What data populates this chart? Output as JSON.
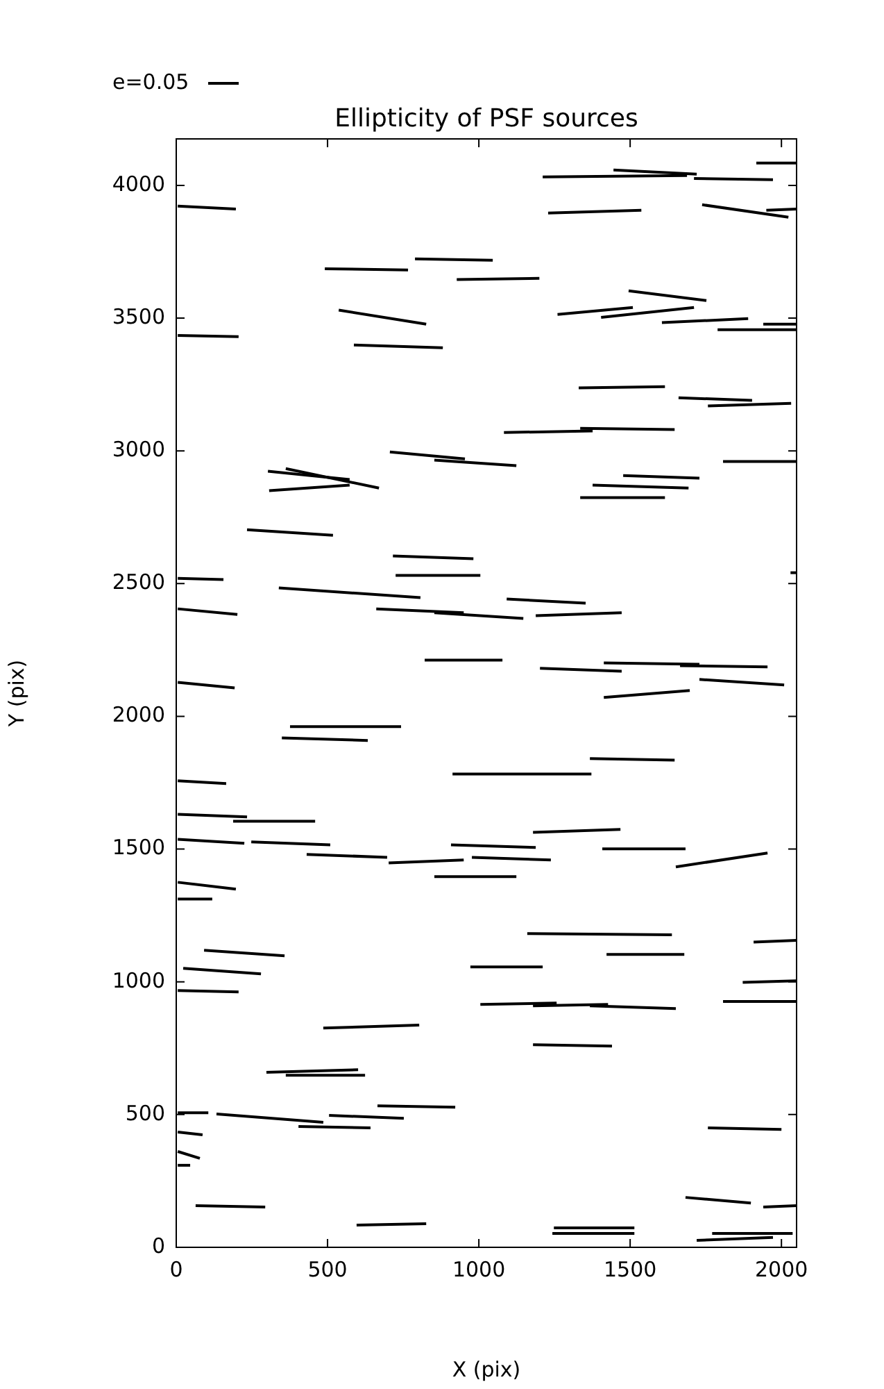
{
  "chart_data": {
    "type": "line",
    "title": "Ellipticity of PSF sources",
    "xlabel": "X (pix)",
    "ylabel": "Y (pix)",
    "xlim": [
      0,
      2050
    ],
    "ylim": [
      0,
      4175
    ],
    "xticks": [
      0,
      500,
      1000,
      1500,
      2000
    ],
    "yticks": [
      0,
      500,
      1000,
      1500,
      2000,
      2500,
      3000,
      3500,
      4000
    ],
    "grid": false,
    "marker": "none",
    "line_style": "solid",
    "annotations": [
      "e=0.05"
    ],
    "series": [
      {
        "color": "#000000",
        "x": [
          1917,
          2050
        ],
        "values": [
          4084,
          4084
        ]
      },
      {
        "color": "#000000",
        "x": [
          1445,
          1720
        ],
        "values": [
          4058,
          4042
        ]
      },
      {
        "color": "#000000",
        "x": [
          1211,
          1688
        ],
        "values": [
          4032,
          4037
        ]
      },
      {
        "color": "#000000",
        "x": [
          1711,
          1972
        ],
        "values": [
          4026,
          4021
        ]
      },
      {
        "color": "#000000",
        "x": [
          1229,
          1537
        ],
        "values": [
          3896,
          3906
        ]
      },
      {
        "color": "#000000",
        "x": [
          1738,
          2023
        ],
        "values": [
          3927,
          3880
        ]
      },
      {
        "color": "#000000",
        "x": [
          1950,
          2050
        ],
        "values": [
          3906,
          3911
        ]
      },
      {
        "color": "#000000",
        "x": [
          5,
          197
        ],
        "values": [
          3922,
          3911
        ]
      },
      {
        "color": "#000000",
        "x": [
          491,
          766
        ],
        "values": [
          3686,
          3681
        ]
      },
      {
        "color": "#000000",
        "x": [
          789,
          1046
        ],
        "values": [
          3723,
          3718
        ]
      },
      {
        "color": "#000000",
        "x": [
          927,
          1200
        ],
        "values": [
          3645,
          3650
        ]
      },
      {
        "color": "#000000",
        "x": [
          537,
          826
        ],
        "values": [
          3530,
          3477
        ]
      },
      {
        "color": "#000000",
        "x": [
          587,
          881
        ],
        "values": [
          3399,
          3388
        ]
      },
      {
        "color": "#000000",
        "x": [
          5,
          206
        ],
        "values": [
          3435,
          3430
        ]
      },
      {
        "color": "#000000",
        "x": [
          1495,
          1752
        ],
        "values": [
          3603,
          3566
        ]
      },
      {
        "color": "#000000",
        "x": [
          1260,
          1509
        ],
        "values": [
          3514,
          3540
        ]
      },
      {
        "color": "#000000",
        "x": [
          1404,
          1711
        ],
        "values": [
          3503,
          3540
        ]
      },
      {
        "color": "#000000",
        "x": [
          1605,
          1890
        ],
        "values": [
          3483,
          3498
        ]
      },
      {
        "color": "#000000",
        "x": [
          1789,
          2050
        ],
        "values": [
          3456,
          3456
        ]
      },
      {
        "color": "#000000",
        "x": [
          1940,
          2050
        ],
        "values": [
          3477,
          3477
        ]
      },
      {
        "color": "#000000",
        "x": [
          1330,
          1615
        ],
        "values": [
          3237,
          3242
        ]
      },
      {
        "color": "#000000",
        "x": [
          1660,
          1903
        ],
        "values": [
          3200,
          3190
        ]
      },
      {
        "color": "#000000",
        "x": [
          1757,
          2032
        ],
        "values": [
          3169,
          3179
        ]
      },
      {
        "color": "#000000",
        "x": [
          1083,
          1376
        ],
        "values": [
          3069,
          3075
        ]
      },
      {
        "color": "#000000",
        "x": [
          1335,
          1647
        ],
        "values": [
          3085,
          3080
        ]
      },
      {
        "color": "#000000",
        "x": [
          1807,
          2050
        ],
        "values": [
          2960,
          2960
        ]
      },
      {
        "color": "#000000",
        "x": [
          706,
          954
        ],
        "values": [
          2996,
          2970
        ]
      },
      {
        "color": "#000000",
        "x": [
          853,
          1124
        ],
        "values": [
          2965,
          2944
        ]
      },
      {
        "color": "#000000",
        "x": [
          1477,
          1729
        ],
        "values": [
          2907,
          2897
        ]
      },
      {
        "color": "#000000",
        "x": [
          1376,
          1693
        ],
        "values": [
          2871,
          2860
        ]
      },
      {
        "color": "#000000",
        "x": [
          1335,
          1615
        ],
        "values": [
          2824,
          2824
        ]
      },
      {
        "color": "#000000",
        "x": [
          303,
          573
        ],
        "values": [
          2923,
          2892
        ]
      },
      {
        "color": "#000000",
        "x": [
          362,
          670
        ],
        "values": [
          2933,
          2860
        ]
      },
      {
        "color": "#000000",
        "x": [
          307,
          573
        ],
        "values": [
          2850,
          2871
        ]
      },
      {
        "color": "#000000",
        "x": [
          234,
          518
        ],
        "values": [
          2703,
          2682
        ]
      },
      {
        "color": "#000000",
        "x": [
          716,
          982
        ],
        "values": [
          2604,
          2594
        ]
      },
      {
        "color": "#000000",
        "x": [
          725,
          1005
        ],
        "values": [
          2531,
          2531
        ]
      },
      {
        "color": "#000000",
        "x": [
          5,
          156
        ],
        "values": [
          2520,
          2515
        ]
      },
      {
        "color": "#000000",
        "x": [
          339,
          807
        ],
        "values": [
          2484,
          2447
        ]
      },
      {
        "color": "#000000",
        "x": [
          5,
          202
        ],
        "values": [
          2405,
          2384
        ]
      },
      {
        "color": "#000000",
        "x": [
          661,
          950
        ],
        "values": [
          2405,
          2390
        ]
      },
      {
        "color": "#000000",
        "x": [
          853,
          1147
        ],
        "values": [
          2390,
          2369
        ]
      },
      {
        "color": "#000000",
        "x": [
          1092,
          1353
        ],
        "values": [
          2442,
          2426
        ]
      },
      {
        "color": "#000000",
        "x": [
          1188,
          1472
        ],
        "values": [
          2379,
          2390
        ]
      },
      {
        "color": "#000000",
        "x": [
          2030,
          2050
        ],
        "values": [
          2541,
          2541
        ]
      },
      {
        "color": "#000000",
        "x": [
          821,
          1078
        ],
        "values": [
          2212,
          2212
        ]
      },
      {
        "color": "#000000",
        "x": [
          1202,
          1472
        ],
        "values": [
          2181,
          2170
        ]
      },
      {
        "color": "#000000",
        "x": [
          1413,
          1729
        ],
        "values": [
          2201,
          2196
        ]
      },
      {
        "color": "#000000",
        "x": [
          1665,
          1954
        ],
        "values": [
          2191,
          2186
        ]
      },
      {
        "color": "#000000",
        "x": [
          1729,
          2009
        ],
        "values": [
          2139,
          2118
        ]
      },
      {
        "color": "#000000",
        "x": [
          1413,
          1697
        ],
        "values": [
          2071,
          2097
        ]
      },
      {
        "color": "#000000",
        "x": [
          5,
          193
        ],
        "values": [
          2128,
          2107
        ]
      },
      {
        "color": "#000000",
        "x": [
          376,
          743
        ],
        "values": [
          1961,
          1961
        ]
      },
      {
        "color": "#000000",
        "x": [
          349,
          633
        ],
        "values": [
          1919,
          1909
        ]
      },
      {
        "color": "#000000",
        "x": [
          1367,
          1647
        ],
        "values": [
          1841,
          1835
        ]
      },
      {
        "color": "#000000",
        "x": [
          913,
          1372
        ],
        "values": [
          1783,
          1783
        ]
      },
      {
        "color": "#000000",
        "x": [
          5,
          165
        ],
        "values": [
          1757,
          1747
        ]
      },
      {
        "color": "#000000",
        "x": [
          5,
          234
        ],
        "values": [
          1631,
          1621
        ]
      },
      {
        "color": "#000000",
        "x": [
          188,
          459
        ],
        "values": [
          1605,
          1605
        ]
      },
      {
        "color": "#000000",
        "x": [
          5,
          225
        ],
        "values": [
          1537,
          1522
        ]
      },
      {
        "color": "#000000",
        "x": [
          248,
          509
        ],
        "values": [
          1527,
          1516
        ]
      },
      {
        "color": "#000000",
        "x": [
          431,
          697
        ],
        "values": [
          1480,
          1469
        ]
      },
      {
        "color": "#000000",
        "x": [
          702,
          950
        ],
        "values": [
          1448,
          1459
        ]
      },
      {
        "color": "#000000",
        "x": [
          908,
          1188
        ],
        "values": [
          1516,
          1506
        ]
      },
      {
        "color": "#000000",
        "x": [
          977,
          1238
        ],
        "values": [
          1469,
          1459
        ]
      },
      {
        "color": "#000000",
        "x": [
          853,
          1124
        ],
        "values": [
          1396,
          1396
        ]
      },
      {
        "color": "#000000",
        "x": [
          1179,
          1468
        ],
        "values": [
          1563,
          1574
        ]
      },
      {
        "color": "#000000",
        "x": [
          1408,
          1683
        ],
        "values": [
          1501,
          1501
        ]
      },
      {
        "color": "#000000",
        "x": [
          1651,
          1954
        ],
        "values": [
          1433,
          1485
        ]
      },
      {
        "color": "#000000",
        "x": [
          5,
          197
        ],
        "values": [
          1375,
          1349
        ]
      },
      {
        "color": "#000000",
        "x": [
          5,
          119
        ],
        "values": [
          1312,
          1312
        ]
      },
      {
        "color": "#000000",
        "x": [
          92,
          358
        ],
        "values": [
          1119,
          1098
        ]
      },
      {
        "color": "#000000",
        "x": [
          23,
          280
        ],
        "values": [
          1051,
          1030
        ]
      },
      {
        "color": "#000000",
        "x": [
          5,
          206
        ],
        "values": [
          967,
          962
        ]
      },
      {
        "color": "#000000",
        "x": [
          486,
          803
        ],
        "values": [
          826,
          837
        ]
      },
      {
        "color": "#000000",
        "x": [
          972,
          1211
        ],
        "values": [
          1056,
          1056
        ]
      },
      {
        "color": "#000000",
        "x": [
          1005,
          1257
        ],
        "values": [
          915,
          920
        ]
      },
      {
        "color": "#000000",
        "x": [
          1160,
          1638
        ],
        "values": [
          1182,
          1177
        ]
      },
      {
        "color": "#000000",
        "x": [
          1422,
          1679
        ],
        "values": [
          1103,
          1103
        ]
      },
      {
        "color": "#000000",
        "x": [
          1908,
          2050
        ],
        "values": [
          1150,
          1156
        ]
      },
      {
        "color": "#000000",
        "x": [
          1872,
          2050
        ],
        "values": [
          998,
          1004
        ]
      },
      {
        "color": "#000000",
        "x": [
          1807,
          2050
        ],
        "values": [
          926,
          926
        ]
      },
      {
        "color": "#000000",
        "x": [
          1179,
          1427
        ],
        "values": [
          910,
          915
        ]
      },
      {
        "color": "#000000",
        "x": [
          1367,
          1651
        ],
        "values": [
          910,
          899
        ]
      },
      {
        "color": "#000000",
        "x": [
          1179,
          1440
        ],
        "values": [
          763,
          758
        ]
      },
      {
        "color": "#000000",
        "x": [
          1757,
          2000
        ],
        "values": [
          450,
          444
        ]
      },
      {
        "color": "#000000",
        "x": [
          1683,
          1899
        ],
        "values": [
          188,
          167
        ]
      },
      {
        "color": "#000000",
        "x": [
          1940,
          2050
        ],
        "values": [
          152,
          157
        ]
      },
      {
        "color": "#000000",
        "x": [
          1248,
          1514
        ],
        "values": [
          73,
          73
        ]
      },
      {
        "color": "#000000",
        "x": [
          1243,
          1514
        ],
        "values": [
          52,
          52
        ]
      },
      {
        "color": "#000000",
        "x": [
          1771,
          2037
        ],
        "values": [
          52,
          52
        ]
      },
      {
        "color": "#000000",
        "x": [
          1720,
          1972
        ],
        "values": [
          26,
          37
        ]
      },
      {
        "color": "#000000",
        "x": [
          298,
          601
        ],
        "values": [
          659,
          669
        ]
      },
      {
        "color": "#000000",
        "x": [
          362,
          624
        ],
        "values": [
          648,
          648
        ]
      },
      {
        "color": "#000000",
        "x": [
          665,
          922
        ],
        "values": [
          533,
          528
        ]
      },
      {
        "color": "#000000",
        "x": [
          505,
          752
        ],
        "values": [
          497,
          486
        ]
      },
      {
        "color": "#000000",
        "x": [
          133,
          486
        ],
        "values": [
          502,
          471
        ]
      },
      {
        "color": "#000000",
        "x": [
          404,
          642
        ],
        "values": [
          455,
          450
        ]
      },
      {
        "color": "#000000",
        "x": [
          5,
          106
        ],
        "values": [
          507,
          507
        ]
      },
      {
        "color": "#000000",
        "x": [
          5,
          87
        ],
        "values": [
          434,
          424
        ]
      },
      {
        "color": "#000000",
        "x": [
          5,
          78
        ],
        "values": [
          361,
          335
        ]
      },
      {
        "color": "#000000",
        "x": [
          5,
          46
        ],
        "values": [
          309,
          309
        ]
      },
      {
        "color": "#000000",
        "x": [
          64,
          294
        ],
        "values": [
          157,
          152
        ]
      },
      {
        "color": "#000000",
        "x": [
          596,
          826
        ],
        "values": [
          84,
          89
        ]
      }
    ]
  }
}
